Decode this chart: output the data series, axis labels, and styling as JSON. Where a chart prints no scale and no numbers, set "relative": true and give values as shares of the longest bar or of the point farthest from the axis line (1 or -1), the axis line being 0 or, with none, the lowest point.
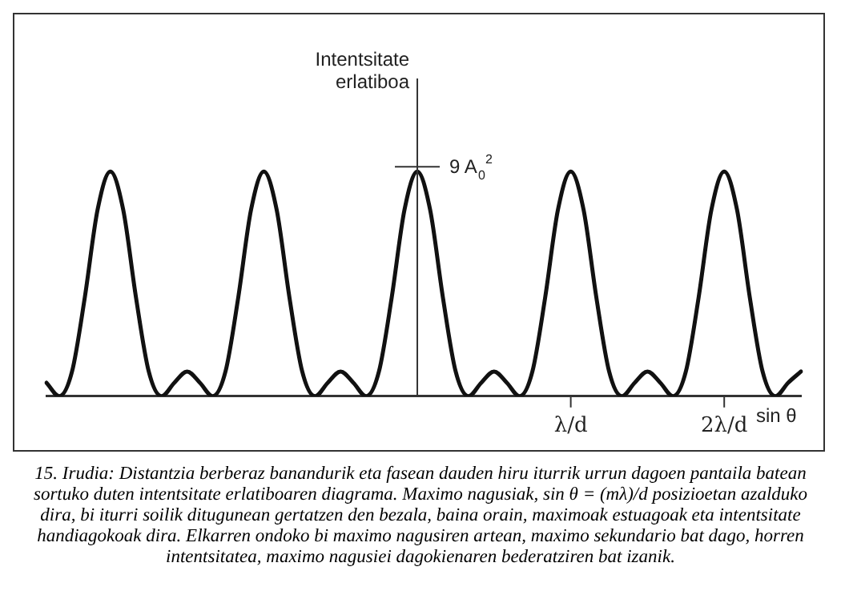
{
  "chart_data": {
    "type": "line",
    "relative": true,
    "ylabel": "Intentsitate erlatiboa",
    "xlabel": "sin θ",
    "color": "#111111",
    "marker": "none",
    "line_style": "solid",
    "legend": false,
    "categories": [
      null,
      null,
      null,
      null,
      null,
      null,
      null,
      null,
      null,
      null,
      null,
      null,
      null,
      null,
      null,
      null,
      null,
      null,
      null,
      null,
      null,
      null,
      null,
      null,
      null,
      null,
      null,
      null,
      null,
      null,
      null,
      null,
      null,
      null,
      null,
      null,
      null,
      null,
      null,
      null,
      null,
      "λ/d",
      null,
      null,
      null,
      null,
      null,
      null,
      null,
      null,
      null,
      null,
      null,
      "2λ/d",
      null,
      null,
      null,
      null,
      null,
      null
    ],
    "values": [
      0.06,
      0,
      0.11,
      0.44,
      0.83,
      1,
      0.83,
      0.44,
      0.11,
      0,
      0.06,
      0.11,
      0.06,
      0,
      0.11,
      0.44,
      0.83,
      1,
      0.83,
      0.44,
      0.11,
      0,
      0.06,
      0.11,
      0.06,
      0,
      0.11,
      0.44,
      0.83,
      1,
      0.83,
      0.44,
      0.11,
      0,
      0.06,
      0.11,
      0.06,
      0,
      0.11,
      0.44,
      0.83,
      1,
      0.83,
      0.44,
      0.11,
      0,
      0.06,
      0.11,
      0.06,
      0,
      0.11,
      0.44,
      0.83,
      1,
      0.83,
      0.44,
      0.11,
      0,
      0.06,
      0.11
    ],
    "annotations": [
      "9 A$_{0}$$^{2}$",
      "15. Irudia: Distantzia berberaz banandurik eta fasean dauden hiru iturrik urrun dagoen pantaila batean sortuko duten intentsitate erlatiboaren diagrama. Maximo nagusiak, sin θ = (mλ)/d posizioetan azalduko dira, bi iturri soilik ditugunean gertatzen den bezala, baina orain, maximoak estuagoak eta intentsitate handiagokoak dira. Elkarren ondoko bi maximo nagusiren artean, maximo sekundario bat dago, horren intentsitatea, maximo nagusiei dagokienaren bederatziren bat izanik."
    ]
  }
}
